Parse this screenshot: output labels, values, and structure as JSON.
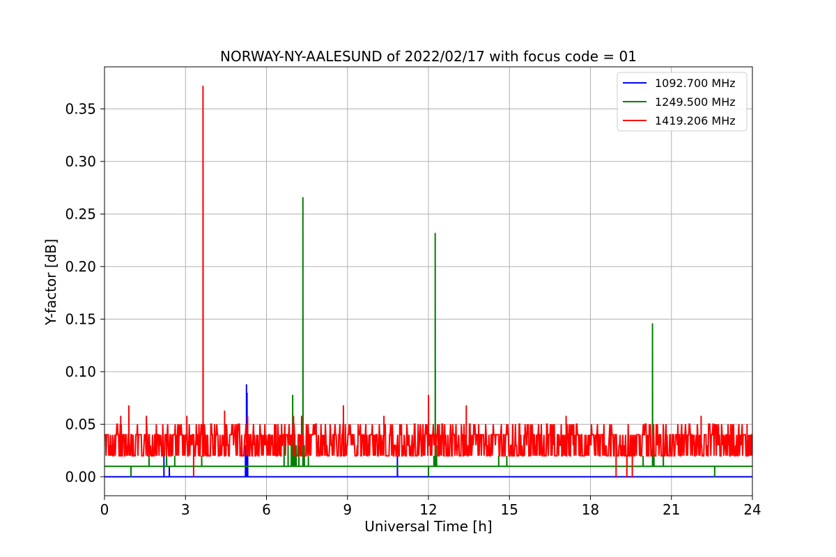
{
  "chart_data": {
    "type": "line",
    "title": "NORWAY-NY-AALESUND of 2022/02/17 with focus code = 01",
    "xlabel": "Universal Time [h]",
    "ylabel": "Y-factor [dB]",
    "xlim": [
      0,
      24
    ],
    "ylim": [
      -0.018,
      0.39
    ],
    "xticks": [
      0,
      3,
      6,
      9,
      12,
      15,
      18,
      21,
      24
    ],
    "yticks": [
      0.0,
      0.05,
      0.1,
      0.15,
      0.2,
      0.25,
      0.3,
      0.35
    ],
    "ytick_labels": [
      "0.00",
      "0.05",
      "0.10",
      "0.15",
      "0.20",
      "0.25",
      "0.30",
      "0.35"
    ],
    "grid": true,
    "legend_position": "top-right",
    "series": [
      {
        "name": "1092.700 MHz",
        "color": "#0000ff",
        "baseline": 0.0,
        "points": [
          [
            2.2,
            0.02
          ],
          [
            2.4,
            0.01
          ],
          [
            5.22,
            0.03
          ],
          [
            5.26,
            0.088
          ],
          [
            5.28,
            0.08
          ],
          [
            5.3,
            0.05
          ],
          [
            10.85,
            0.02
          ]
        ]
      },
      {
        "name": "1249.500 MHz",
        "color": "#008000",
        "baseline": 0.01,
        "points": [
          [
            0.98,
            0.0
          ],
          [
            1.65,
            0.02
          ],
          [
            2.3,
            0.02
          ],
          [
            2.6,
            0.02
          ],
          [
            3.6,
            0.02
          ],
          [
            6.65,
            0.03
          ],
          [
            6.8,
            0.03
          ],
          [
            6.92,
            0.04
          ],
          [
            6.97,
            0.078
          ],
          [
            7.0,
            0.05
          ],
          [
            7.05,
            0.04
          ],
          [
            7.1,
            0.03
          ],
          [
            7.2,
            0.03
          ],
          [
            7.35,
            0.266
          ],
          [
            7.4,
            0.03
          ],
          [
            7.55,
            0.02
          ],
          [
            12.0,
            0.0
          ],
          [
            12.2,
            0.02
          ],
          [
            12.25,
            0.232
          ],
          [
            12.3,
            0.03
          ],
          [
            14.6,
            0.02
          ],
          [
            14.9,
            0.02
          ],
          [
            19.95,
            0.02
          ],
          [
            20.3,
            0.146
          ],
          [
            20.35,
            0.03
          ],
          [
            20.7,
            0.02
          ],
          [
            22.6,
            0.0
          ],
          [
            24.0,
            0.02
          ]
        ]
      },
      {
        "name": "1419.206 MHz",
        "color": "#ff0000",
        "baseline_low": 0.02,
        "baseline_high": 0.04,
        "points": [
          [
            0.6,
            0.058
          ],
          [
            0.9,
            0.068
          ],
          [
            1.55,
            0.058
          ],
          [
            3.05,
            0.058
          ],
          [
            3.3,
            0.0
          ],
          [
            3.65,
            0.372
          ],
          [
            4.45,
            0.063
          ],
          [
            5.3,
            0.058
          ],
          [
            6.35,
            0.05
          ],
          [
            7.0,
            0.058
          ],
          [
            7.3,
            0.058
          ],
          [
            8.85,
            0.068
          ],
          [
            10.35,
            0.058
          ],
          [
            12.0,
            0.078
          ],
          [
            13.4,
            0.068
          ],
          [
            17.1,
            0.058
          ],
          [
            18.95,
            -0.001
          ],
          [
            19.35,
            -0.001
          ],
          [
            19.55,
            -0.001
          ],
          [
            22.1,
            0.058
          ],
          [
            23.8,
            0.05
          ]
        ]
      }
    ]
  }
}
